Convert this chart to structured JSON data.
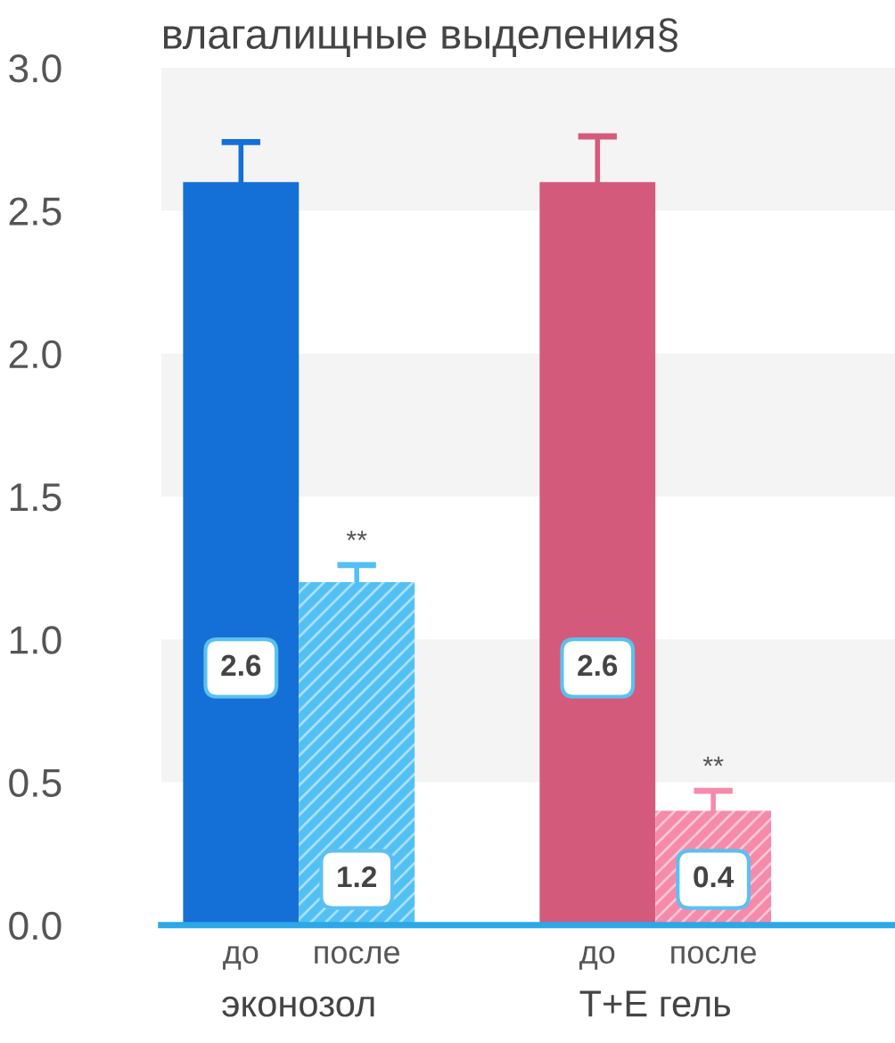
{
  "chart_data": {
    "type": "bar",
    "title": "влагалищные выделения§",
    "categories": [
      "до",
      "после",
      "до",
      "после"
    ],
    "values": [
      2.6,
      1.2,
      2.6,
      0.4
    ],
    "colors": [
      "#1470d6",
      "#52c0f5",
      "#d45a7c",
      "#f58aaa"
    ],
    "errors": [
      [
        2.6,
        2.74
      ],
      [
        1.2,
        1.26
      ],
      [
        2.6,
        2.76
      ],
      [
        0.4,
        0.47
      ]
    ],
    "data_labels": true,
    "ylim": [
      0,
      3.0
    ],
    "yticks": [
      {
        "value": 0,
        "label": "0.0"
      },
      {
        "value": 0.5,
        "label": "0.5"
      },
      {
        "value": 1.0,
        "label": "1.0"
      },
      {
        "value": 1.5,
        "label": "1.5"
      },
      {
        "value": 2.0,
        "label": "2.0"
      },
      {
        "value": 2.5,
        "label": "2.5"
      },
      {
        "value": 3.0,
        "label": "3.0"
      }
    ],
    "bands": [
      {
        "axis": "y",
        "from": 0.5,
        "to": 1.0,
        "color": "#f4f4f4"
      },
      {
        "axis": "y",
        "from": 1.5,
        "to": 2.0,
        "color": "#f4f4f4"
      },
      {
        "axis": "y",
        "from": 2.5,
        "to": 3.0,
        "color": "#f4f4f4"
      }
    ],
    "annotations": [
      "эконозол",
      "T+E гель",
      "**",
      "**"
    ]
  }
}
